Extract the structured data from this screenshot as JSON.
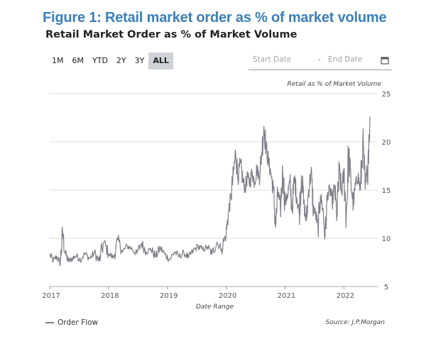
{
  "figure_title": "Figure 1: Retail market order as % of market volume",
  "range_selector": {
    "buttons": [
      "1M",
      "6M",
      "YTD",
      "2Y",
      "3Y",
      "ALL"
    ],
    "active": "ALL"
  },
  "date_filter": {
    "start_placeholder": "Start Date",
    "separator": "-",
    "end_placeholder": "End Date",
    "icon": "calendar-icon"
  },
  "colors": {
    "title": "#3b7fb8",
    "series": "#7f8089",
    "grid": "#dcdcdc"
  },
  "chart_data": {
    "type": "line",
    "title": "Retail Market Order as % of Market Volume",
    "ylabel": "Retail as % of Market Volume",
    "xlabel": "Date Range",
    "ylim": [
      5,
      25
    ],
    "yticks": [
      5,
      10,
      15,
      20,
      25
    ],
    "xlim": [
      2017,
      2022.55
    ],
    "xticks": [
      2017,
      2018,
      2019,
      2020,
      2021,
      2022
    ],
    "xtick_labels": [
      "2017",
      "2018",
      "2019",
      "2020",
      "2021",
      "2022"
    ],
    "y_axis_position": "right",
    "grid": "horizontal",
    "legend_position": "bottom-left",
    "source": "Source: J.P.Morgan",
    "series": [
      {
        "name": "Order Flow",
        "x": [
          2017.0,
          2017.06,
          2017.12,
          2017.18,
          2017.22,
          2017.26,
          2017.32,
          2017.38,
          2017.45,
          2017.52,
          2017.6,
          2017.68,
          2017.76,
          2017.84,
          2017.92,
          2018.0,
          2018.08,
          2018.16,
          2018.24,
          2018.32,
          2018.4,
          2018.48,
          2018.56,
          2018.64,
          2018.72,
          2018.8,
          2018.88,
          2018.96,
          2019.04,
          2019.12,
          2019.2,
          2019.28,
          2019.36,
          2019.44,
          2019.52,
          2019.6,
          2019.68,
          2019.76,
          2019.84,
          2019.92,
          2020.0,
          2020.04,
          2020.08,
          2020.12,
          2020.16,
          2020.2,
          2020.24,
          2020.28,
          2020.32,
          2020.36,
          2020.4,
          2020.44,
          2020.48,
          2020.52,
          2020.56,
          2020.6,
          2020.64,
          2020.68,
          2020.72,
          2020.76,
          2020.8,
          2020.84,
          2020.88,
          2020.92,
          2020.96,
          2021.0,
          2021.04,
          2021.08,
          2021.12,
          2021.16,
          2021.2,
          2021.24,
          2021.28,
          2021.32,
          2021.36,
          2021.4,
          2021.44,
          2021.48,
          2021.52,
          2021.56,
          2021.6,
          2021.64,
          2021.68,
          2021.72,
          2021.76,
          2021.8,
          2021.84,
          2021.88,
          2021.92,
          2021.96,
          2022.0,
          2022.04,
          2022.08,
          2022.12,
          2022.16,
          2022.2,
          2022.24,
          2022.28,
          2022.32,
          2022.36,
          2022.4,
          2022.44
        ],
        "values": [
          8.3,
          7.7,
          8.1,
          7.4,
          10.6,
          8.5,
          7.6,
          7.9,
          8.2,
          7.8,
          8.4,
          7.9,
          8.5,
          7.6,
          9.6,
          8.4,
          8.0,
          9.8,
          8.6,
          9.2,
          8.9,
          8.4,
          9.5,
          8.6,
          8.9,
          8.1,
          9.0,
          8.3,
          7.8,
          8.6,
          8.1,
          8.5,
          8.0,
          8.7,
          9.2,
          8.8,
          9.1,
          8.4,
          9.6,
          8.9,
          10.5,
          12.8,
          14.3,
          16.6,
          18.9,
          16.3,
          17.8,
          16.1,
          15.2,
          16.4,
          15.7,
          16.9,
          15.8,
          17.2,
          16.4,
          18.6,
          21.6,
          19.3,
          17.8,
          16.7,
          15.0,
          11.3,
          14.8,
          13.0,
          16.9,
          13.6,
          14.5,
          15.8,
          13.1,
          16.2,
          14.2,
          12.6,
          16.5,
          13.5,
          11.8,
          15.0,
          16.8,
          13.2,
          12.5,
          11.1,
          14.4,
          13.1,
          10.2,
          14.4,
          15.2,
          13.7,
          15.3,
          12.3,
          17.0,
          14.7,
          16.8,
          12.2,
          19.0,
          15.6,
          13.5,
          15.7,
          16.4,
          15.0,
          19.9,
          15.1,
          17.2,
          22.6
        ]
      }
    ]
  }
}
